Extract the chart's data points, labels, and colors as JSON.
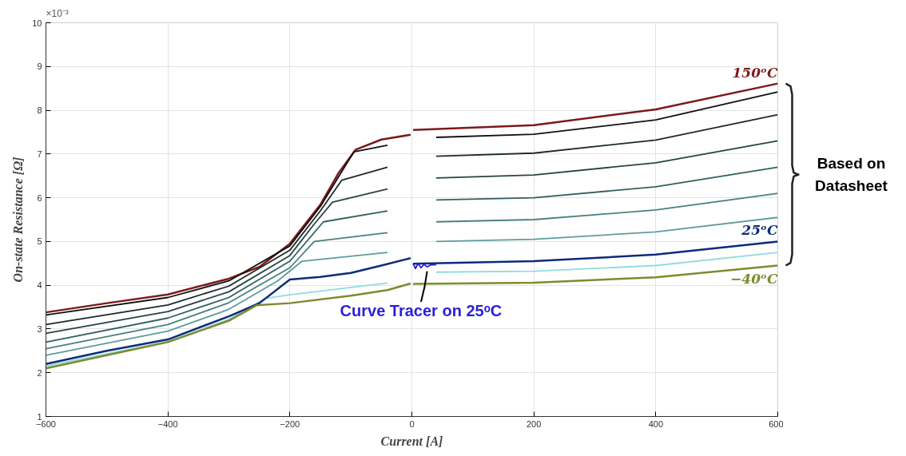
{
  "chart_data": {
    "type": "line",
    "xlabel": "Current [A]",
    "ylabel": "On-state Resistance [Ω]",
    "xlim": [
      -600,
      600
    ],
    "xticks": [
      -600,
      -400,
      -200,
      0,
      200,
      400,
      600
    ],
    "ylim": [
      1,
      10
    ],
    "yticks": [
      1,
      2,
      3,
      4,
      5,
      6,
      7,
      8,
      9,
      10
    ],
    "grid": true,
    "marker": "none",
    "line_style": "solid",
    "annotations": [
      "×10⁻³",
      "Based on\nDatasheet",
      {
        "text": "Curve Tracer on 25ᵒC",
        "x": 25,
        "y": 4.42
      }
    ],
    "series": [
      {
        "name": "150ᵒC",
        "color": "#7b1a1a",
        "x": [
          -600,
          -500,
          -400,
          -300,
          -250,
          -200,
          -150,
          -120,
          -92,
          -50,
          -2,
          0,
          2,
          200,
          400,
          600
        ],
        "values": [
          3.38,
          3.59,
          3.79,
          4.15,
          4.42,
          4.95,
          5.84,
          6.57,
          7.1,
          7.33,
          7.44,
          null,
          7.55,
          7.66,
          8.02,
          8.61
        ]
      },
      {
        "color": "#111111",
        "x": [
          -600,
          -400,
          -300,
          -200,
          -150,
          -95,
          -40,
          0,
          40,
          200,
          400,
          600
        ],
        "values": [
          3.32,
          3.72,
          4.1,
          4.9,
          5.8,
          7.05,
          7.2,
          null,
          7.38,
          7.45,
          7.78,
          8.42
        ]
      },
      {
        "color": "#1c2a2a",
        "x": [
          -600,
          -400,
          -300,
          -200,
          -150,
          -115,
          -40,
          0,
          40,
          200,
          400,
          600
        ],
        "values": [
          3.1,
          3.55,
          3.98,
          4.8,
          5.7,
          6.4,
          6.7,
          null,
          6.95,
          7.02,
          7.32,
          7.9
        ]
      },
      {
        "color": "#284444",
        "x": [
          -600,
          -400,
          -300,
          -200,
          -160,
          -130,
          -40,
          0,
          40,
          200,
          400,
          600
        ],
        "values": [
          2.9,
          3.4,
          3.85,
          4.68,
          5.4,
          5.9,
          6.2,
          null,
          6.45,
          6.52,
          6.8,
          7.3
        ]
      },
      {
        "color": "#336060",
        "x": [
          -600,
          -400,
          -300,
          -200,
          -145,
          -40,
          0,
          40,
          200,
          400,
          600
        ],
        "values": [
          2.7,
          3.25,
          3.72,
          4.55,
          5.45,
          5.7,
          null,
          5.95,
          6.0,
          6.25,
          6.7
        ]
      },
      {
        "color": "#4a8080",
        "x": [
          -600,
          -400,
          -300,
          -200,
          -160,
          -40,
          0,
          40,
          200,
          400,
          600
        ],
        "values": [
          2.55,
          3.1,
          3.6,
          4.4,
          5.0,
          5.2,
          null,
          5.45,
          5.5,
          5.72,
          6.1
        ]
      },
      {
        "color": "#5f9c9c",
        "x": [
          -600,
          -400,
          -300,
          -220,
          -180,
          -40,
          0,
          40,
          200,
          400,
          600
        ],
        "values": [
          2.4,
          2.95,
          3.45,
          4.1,
          4.55,
          4.75,
          null,
          5.0,
          5.05,
          5.22,
          5.55
        ]
      },
      {
        "color": "#8fdcdc",
        "x": [
          -600,
          -400,
          -300,
          -240,
          -200,
          -40,
          0,
          40,
          200,
          400,
          600
        ],
        "values": [
          2.15,
          2.72,
          3.22,
          3.7,
          3.78,
          4.05,
          null,
          4.3,
          4.32,
          4.45,
          4.75
        ]
      },
      {
        "name": "25ᵒC",
        "color": "#0d2b7a",
        "x": [
          -600,
          -500,
          -400,
          -300,
          -250,
          -200,
          -150,
          -100,
          -50,
          -2,
          0,
          2,
          200,
          400,
          600
        ],
        "values": [
          2.2,
          2.5,
          2.76,
          3.29,
          3.59,
          4.13,
          4.19,
          4.28,
          4.45,
          4.62,
          null,
          4.49,
          4.55,
          4.7,
          5.0
        ]
      },
      {
        "color": "#2a1fd6",
        "x": [
          2,
          6,
          10,
          15,
          20,
          25,
          30,
          40
        ],
        "values": [
          4.5,
          4.38,
          4.5,
          4.4,
          4.48,
          4.42,
          4.46,
          4.47
        ]
      },
      {
        "name": "−40ᵒC",
        "color": "#7f8a2e",
        "x": [
          -600,
          -500,
          -400,
          -300,
          -255,
          -200,
          -100,
          -40,
          -2,
          0,
          2,
          200,
          400,
          600
        ],
        "values": [
          2.1,
          2.4,
          2.7,
          3.19,
          3.54,
          3.59,
          3.76,
          3.89,
          4.04,
          null,
          4.03,
          4.06,
          4.18,
          4.45
        ]
      }
    ]
  }
}
